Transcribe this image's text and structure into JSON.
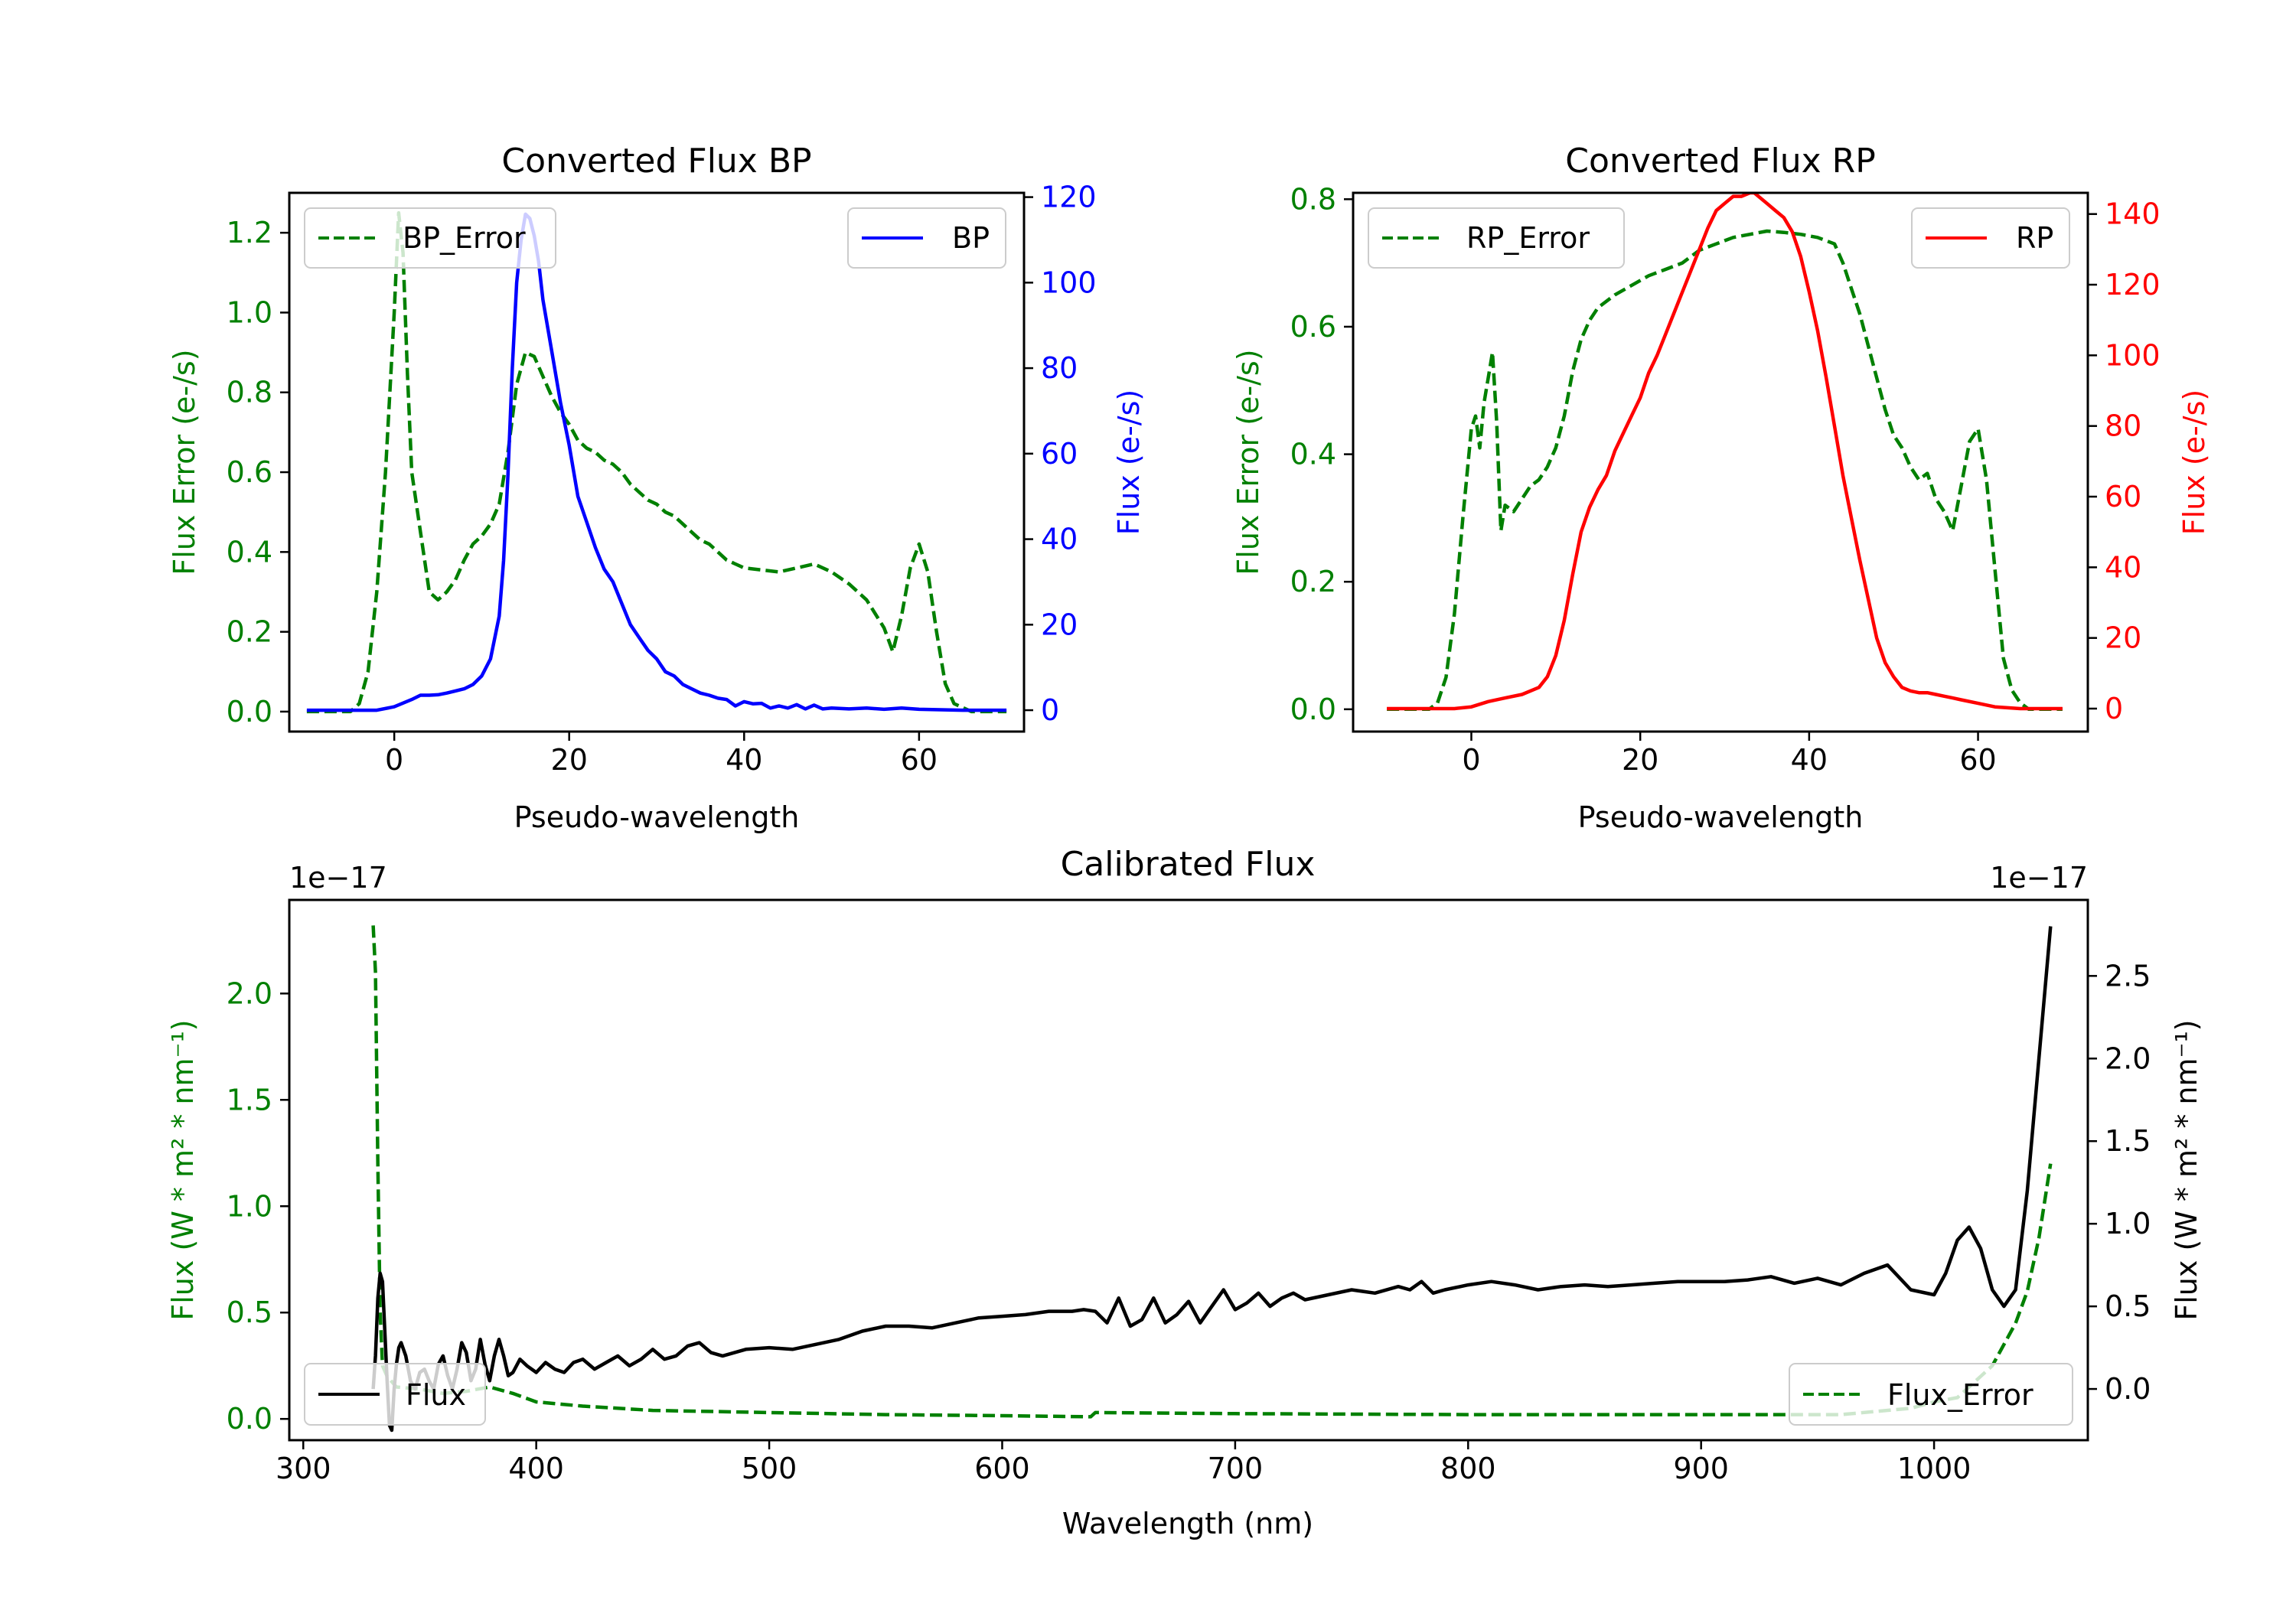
{
  "chart_data": [
    {
      "id": "bp",
      "type": "line",
      "title": "Converted Flux BP",
      "xlabel": "Pseudo-wavelength",
      "ylabel_left": "Flux Error (e-/s)",
      "ylabel_right": "Flux (e-/s)",
      "xlim": [
        -12,
        72
      ],
      "ylim_left": [
        -0.05,
        1.3
      ],
      "ylim_right": [
        -5,
        121
      ],
      "xticks": [
        0,
        20,
        40,
        60
      ],
      "yticks_left": [
        0.0,
        0.2,
        0.4,
        0.6,
        0.8,
        1.0,
        1.2
      ],
      "yticks_right": [
        0,
        20,
        40,
        60,
        80,
        100,
        120
      ],
      "left_axis_color": "#008000",
      "right_axis_color": "#0000ff",
      "series": [
        {
          "name": "BP_Error",
          "axis": "left",
          "color": "#008000",
          "dash": "dashed",
          "x": [
            -10,
            -5,
            -4,
            -3,
            -2,
            -1,
            0,
            0.5,
            1,
            1.5,
            2,
            3,
            4,
            5,
            6,
            7,
            8,
            9,
            10,
            11,
            12,
            13,
            14,
            15,
            16,
            17,
            18,
            19,
            20,
            21,
            22,
            23,
            24,
            25,
            26,
            27,
            28,
            29,
            30,
            31,
            32,
            33,
            34,
            35,
            36,
            37,
            38,
            39,
            40,
            42,
            44,
            46,
            48,
            50,
            52,
            54,
            56,
            57,
            58,
            59,
            60,
            61,
            62,
            63,
            64,
            65,
            66,
            68,
            70
          ],
          "values": [
            0,
            0,
            0.02,
            0.1,
            0.3,
            0.6,
            1.0,
            1.25,
            1.15,
            0.85,
            0.6,
            0.45,
            0.3,
            0.28,
            0.3,
            0.33,
            0.38,
            0.42,
            0.44,
            0.47,
            0.52,
            0.65,
            0.82,
            0.9,
            0.89,
            0.84,
            0.79,
            0.75,
            0.72,
            0.68,
            0.66,
            0.65,
            0.63,
            0.62,
            0.6,
            0.57,
            0.55,
            0.53,
            0.52,
            0.5,
            0.49,
            0.47,
            0.45,
            0.43,
            0.42,
            0.4,
            0.38,
            0.37,
            0.36,
            0.355,
            0.35,
            0.36,
            0.37,
            0.35,
            0.32,
            0.28,
            0.21,
            0.15,
            0.24,
            0.36,
            0.42,
            0.35,
            0.2,
            0.07,
            0.02,
            0.01,
            0,
            0,
            0
          ]
        },
        {
          "name": "BP",
          "axis": "right",
          "color": "#0000ff",
          "dash": "solid",
          "x": [
            -10,
            -5,
            -2,
            0,
            2,
            3,
            4,
            5,
            6,
            7,
            8,
            9,
            10,
            11,
            12,
            12.5,
            13,
            13.5,
            14,
            14.5,
            15,
            15.5,
            16,
            16.5,
            17,
            18,
            19,
            20,
            21,
            22,
            23,
            24,
            25,
            26,
            27,
            28,
            29,
            30,
            31,
            32,
            33,
            34,
            35,
            36,
            37,
            38,
            39,
            40,
            41,
            42,
            43,
            44,
            45,
            46,
            47,
            48,
            49,
            50,
            52,
            54,
            56,
            58,
            60,
            65,
            70
          ],
          "values": [
            0,
            0,
            0,
            0.8,
            2.5,
            3.5,
            3.5,
            3.6,
            4,
            4.5,
            5,
            6,
            8,
            12,
            22,
            35,
            55,
            80,
            100,
            110,
            116,
            115,
            111,
            105,
            96,
            84,
            72,
            62,
            50,
            44,
            38,
            33,
            30,
            25,
            20,
            17,
            14,
            12,
            9,
            8,
            6,
            5,
            4,
            3.5,
            2.8,
            2.5,
            1,
            2,
            1.5,
            1.6,
            0.5,
            1,
            0.5,
            1.3,
            0.3,
            1.2,
            0.3,
            0.5,
            0.3,
            0.5,
            0.2,
            0.5,
            0.2,
            0,
            0
          ]
        }
      ],
      "legend": [
        {
          "label": "BP_Error",
          "position": "upper-left"
        },
        {
          "label": "BP",
          "position": "upper-right"
        }
      ]
    },
    {
      "id": "rp",
      "type": "line",
      "title": "Converted Flux RP",
      "xlabel": "Pseudo-wavelength",
      "ylabel_left": "Flux Error (e-/s)",
      "ylabel_right": "Flux (e-/s)",
      "xlim": [
        -14,
        73
      ],
      "ylim_left": [
        -0.035,
        0.81
      ],
      "ylim_right": [
        -6.5,
        146
      ],
      "xticks": [
        0,
        20,
        40,
        60
      ],
      "yticks_left": [
        0.0,
        0.2,
        0.4,
        0.6,
        0.8
      ],
      "yticks_right": [
        0,
        20,
        40,
        60,
        80,
        100,
        120,
        140
      ],
      "left_axis_color": "#008000",
      "right_axis_color": "#ff0000",
      "series": [
        {
          "name": "RP_Error",
          "axis": "left",
          "color": "#008000",
          "dash": "dashed",
          "x": [
            -10,
            -5,
            -4,
            -3,
            -2,
            -1,
            0,
            0.5,
            1,
            1.5,
            2,
            2.5,
            3,
            3.5,
            4,
            5,
            6,
            7,
            8,
            9,
            10,
            11,
            12,
            13,
            14,
            15,
            17,
            19,
            21,
            23,
            25,
            27,
            29,
            31,
            33,
            35,
            37,
            39,
            41,
            43,
            44,
            45,
            46,
            47,
            48,
            49,
            50,
            51,
            52,
            53,
            54,
            55,
            56,
            57,
            58,
            59,
            60,
            61,
            62,
            63,
            64,
            65,
            66,
            68,
            70
          ],
          "values": [
            0,
            0,
            0.01,
            0.05,
            0.15,
            0.3,
            0.44,
            0.46,
            0.41,
            0.48,
            0.52,
            0.56,
            0.45,
            0.28,
            0.32,
            0.31,
            0.33,
            0.35,
            0.36,
            0.38,
            0.41,
            0.46,
            0.53,
            0.58,
            0.61,
            0.63,
            0.65,
            0.665,
            0.68,
            0.69,
            0.7,
            0.72,
            0.73,
            0.74,
            0.745,
            0.75,
            0.748,
            0.745,
            0.74,
            0.73,
            0.7,
            0.66,
            0.62,
            0.57,
            0.52,
            0.47,
            0.43,
            0.41,
            0.38,
            0.36,
            0.37,
            0.33,
            0.31,
            0.28,
            0.35,
            0.42,
            0.44,
            0.36,
            0.22,
            0.08,
            0.03,
            0.01,
            0,
            0,
            0
          ]
        },
        {
          "name": "RP",
          "axis": "right",
          "color": "#ff0000",
          "dash": "solid",
          "x": [
            -10,
            -5,
            -2,
            0,
            2,
            4,
            6,
            8,
            9,
            10,
            11,
            12,
            13,
            14,
            15,
            16,
            17,
            18,
            19,
            20,
            21,
            22,
            23,
            24,
            25,
            26,
            27,
            28,
            29,
            30,
            31,
            32,
            33,
            33.5,
            34,
            35,
            36,
            37,
            38,
            39,
            40,
            41,
            42,
            43,
            44,
            45,
            46,
            47,
            48,
            49,
            50,
            51,
            52,
            53,
            54,
            55,
            56,
            57,
            58,
            60,
            62,
            65,
            70
          ],
          "values": [
            0,
            0,
            0,
            0.5,
            2,
            3,
            4,
            6,
            9,
            15,
            25,
            38,
            50,
            57,
            62,
            66,
            73,
            78,
            83,
            88,
            95,
            100,
            106,
            112,
            118,
            124,
            130,
            136,
            141,
            143,
            145,
            145,
            146,
            146,
            145,
            143,
            141,
            139,
            135,
            128,
            118,
            107,
            94,
            80,
            66,
            54,
            42,
            31,
            20,
            13,
            9,
            6,
            5,
            4.5,
            4.5,
            4,
            3.5,
            3,
            2.5,
            1.5,
            0.5,
            0,
            0
          ]
        }
      ],
      "legend": [
        {
          "label": "RP_Error",
          "position": "upper-left"
        },
        {
          "label": "RP",
          "position": "upper-right"
        }
      ]
    },
    {
      "id": "cal",
      "type": "line",
      "title": "Calibrated Flux",
      "xlabel": "Wavelength (nm)",
      "ylabel_left": "Flux (W * m² * nm⁻¹)",
      "ylabel_right": "Flux (W * m² * nm⁻¹)",
      "offset_text_left": "1e−17",
      "offset_text_right": "1e−17",
      "xlim": [
        294,
        1066
      ],
      "ylim_left": [
        -0.1,
        2.44
      ],
      "ylim_right": [
        -0.31,
        2.96
      ],
      "xticks": [
        300,
        400,
        500,
        600,
        700,
        800,
        900,
        1000
      ],
      "yticks_left": [
        0.0,
        0.5,
        1.0,
        1.5,
        2.0
      ],
      "yticks_right": [
        0.0,
        0.5,
        1.0,
        1.5,
        2.0,
        2.5
      ],
      "left_axis_color": "#008000",
      "right_axis_color": "#000000",
      "series": [
        {
          "name": "Flux_Error",
          "axis": "left",
          "color": "#008000",
          "dash": "dashed",
          "x": [
            330,
            331,
            332,
            333,
            334,
            336,
            340,
            350,
            360,
            370,
            380,
            390,
            400,
            420,
            450,
            500,
            550,
            600,
            638,
            640,
            700,
            800,
            900,
            960,
            990,
            1000,
            1010,
            1015,
            1020,
            1025,
            1030,
            1035,
            1040,
            1045,
            1050
          ],
          "values": [
            2.32,
            2.1,
            1.2,
            0.5,
            0.25,
            0.2,
            0.15,
            0.14,
            0.12,
            0.13,
            0.15,
            0.12,
            0.08,
            0.06,
            0.04,
            0.03,
            0.02,
            0.015,
            0.01,
            0.03,
            0.025,
            0.02,
            0.02,
            0.02,
            0.05,
            0.08,
            0.1,
            0.15,
            0.2,
            0.25,
            0.35,
            0.45,
            0.6,
            0.85,
            1.2
          ]
        },
        {
          "name": "Flux",
          "axis": "right",
          "color": "#000000",
          "dash": "solid",
          "x": [
            330,
            331,
            332,
            333,
            334,
            335,
            336,
            337,
            338,
            339,
            340,
            341,
            342,
            344,
            346,
            348,
            350,
            352,
            354,
            356,
            358,
            360,
            362,
            364,
            366,
            368,
            370,
            372,
            374,
            376,
            378,
            380,
            382,
            384,
            386,
            388,
            390,
            393,
            396,
            400,
            404,
            408,
            412,
            416,
            420,
            425,
            430,
            435,
            440,
            445,
            450,
            455,
            460,
            465,
            470,
            475,
            480,
            490,
            500,
            510,
            520,
            530,
            540,
            550,
            560,
            570,
            580,
            590,
            600,
            610,
            620,
            630,
            635,
            640,
            645,
            650,
            655,
            660,
            665,
            670,
            675,
            680,
            685,
            690,
            695,
            700,
            705,
            710,
            715,
            720,
            725,
            730,
            740,
            750,
            760,
            770,
            775,
            780,
            785,
            790,
            800,
            810,
            820,
            830,
            840,
            850,
            860,
            870,
            880,
            890,
            900,
            910,
            920,
            930,
            940,
            950,
            960,
            970,
            980,
            990,
            1000,
            1005,
            1010,
            1015,
            1020,
            1025,
            1030,
            1035,
            1040,
            1045,
            1050
          ],
          "values": [
            0.0,
            0.2,
            0.55,
            0.7,
            0.65,
            0.35,
            0.05,
            -0.22,
            -0.25,
            0.0,
            0.15,
            0.25,
            0.28,
            0.2,
            0.05,
            0.0,
            0.1,
            0.12,
            0.05,
            0.0,
            0.15,
            0.2,
            0.08,
            0.0,
            0.12,
            0.28,
            0.22,
            0.05,
            0.12,
            0.3,
            0.15,
            0.05,
            0.2,
            0.3,
            0.2,
            0.08,
            0.1,
            0.18,
            0.14,
            0.1,
            0.16,
            0.12,
            0.1,
            0.16,
            0.18,
            0.12,
            0.16,
            0.2,
            0.14,
            0.18,
            0.24,
            0.18,
            0.2,
            0.26,
            0.28,
            0.22,
            0.2,
            0.24,
            0.25,
            0.24,
            0.27,
            0.3,
            0.35,
            0.38,
            0.38,
            0.37,
            0.4,
            0.43,
            0.44,
            0.45,
            0.47,
            0.47,
            0.48,
            0.47,
            0.4,
            0.55,
            0.38,
            0.42,
            0.55,
            0.4,
            0.45,
            0.53,
            0.4,
            0.5,
            0.6,
            0.48,
            0.52,
            0.58,
            0.5,
            0.55,
            0.58,
            0.54,
            0.57,
            0.6,
            0.58,
            0.62,
            0.6,
            0.65,
            0.58,
            0.6,
            0.63,
            0.65,
            0.63,
            0.6,
            0.62,
            0.63,
            0.62,
            0.63,
            0.64,
            0.65,
            0.65,
            0.65,
            0.66,
            0.68,
            0.64,
            0.67,
            0.63,
            0.7,
            0.75,
            0.6,
            0.57,
            0.7,
            0.9,
            0.98,
            0.85,
            0.6,
            0.5,
            0.6,
            1.2,
            2.0,
            2.8
          ]
        }
      ],
      "legend": [
        {
          "label": "Flux",
          "position": "lower-left"
        },
        {
          "label": "Flux_Error",
          "position": "lower-right"
        }
      ]
    }
  ]
}
